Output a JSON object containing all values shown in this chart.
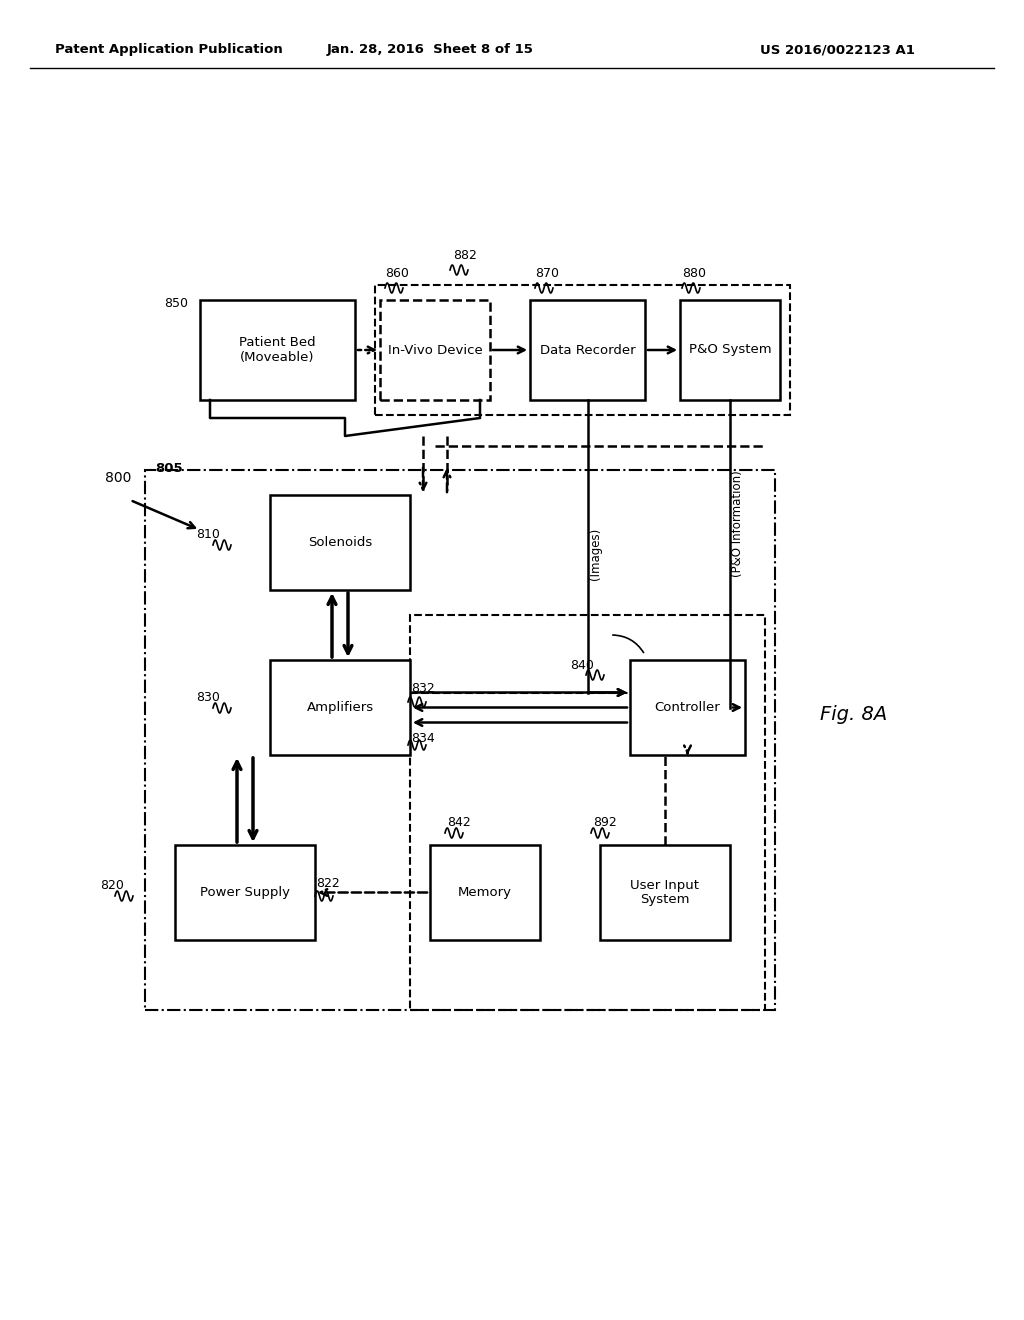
{
  "title_left": "Patent Application Publication",
  "title_center": "Jan. 28, 2016  Sheet 8 of 15",
  "title_right": "US 2016/0022123 A1",
  "fig_label": "Fig. 8A",
  "background_color": "#ffffff"
}
